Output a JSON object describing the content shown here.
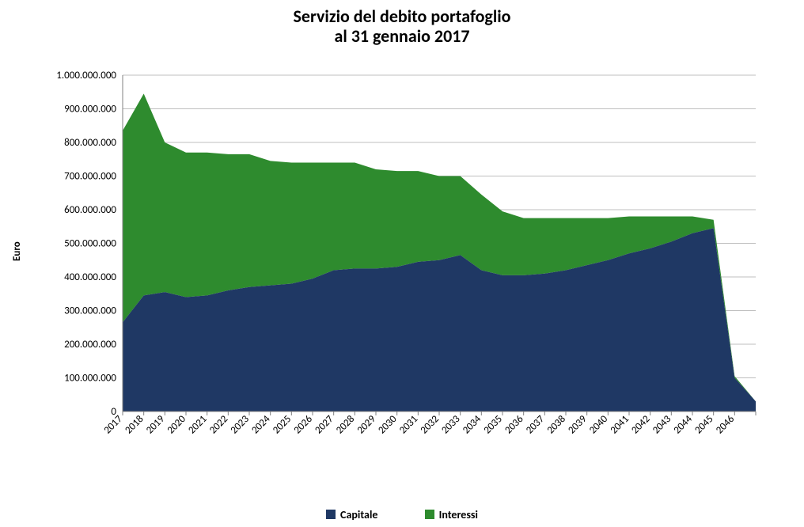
{
  "chart": {
    "type": "area",
    "title_line1": "Servizio del debito portafoglio",
    "title_line2": "al 31 gennaio 2017",
    "title_fontsize": 22,
    "y_axis_title": "Euro",
    "background_color": "#ffffff",
    "grid_color": "#bfbfbf",
    "plot_border_color": "#808080",
    "y": {
      "min": 0,
      "max": 1000000000,
      "step": 100000000,
      "labels": [
        "0",
        "100.000.000",
        "200.000.000",
        "300.000.000",
        "400.000.000",
        "500.000.000",
        "600.000.000",
        "700.000.000",
        "800.000.000",
        "900.000.000",
        "1.000.000.000"
      ]
    },
    "categories": [
      "2017",
      "2018",
      "2019",
      "2020",
      "2021",
      "2022",
      "2023",
      "2024",
      "2025",
      "2026",
      "2027",
      "2028",
      "2029",
      "2030",
      "2031",
      "2032",
      "2033",
      "2034",
      "2035",
      "2036",
      "2037",
      "2038",
      "2039",
      "2040",
      "2041",
      "2042",
      "2043",
      "2044",
      "2045",
      "2046",
      ""
    ],
    "series": [
      {
        "name": "Capitale",
        "color": "#1f3864",
        "values": [
          265000000,
          345000000,
          355000000,
          340000000,
          345000000,
          360000000,
          370000000,
          375000000,
          380000000,
          395000000,
          420000000,
          425000000,
          425000000,
          430000000,
          445000000,
          450000000,
          465000000,
          420000000,
          405000000,
          405000000,
          410000000,
          420000000,
          435000000,
          450000000,
          470000000,
          485000000,
          505000000,
          530000000,
          545000000,
          100000000,
          30000000
        ]
      },
      {
        "name": "Interessi",
        "color": "#2e8b2e",
        "values": [
          570000000,
          600000000,
          445000000,
          430000000,
          425000000,
          405000000,
          395000000,
          370000000,
          360000000,
          345000000,
          320000000,
          315000000,
          295000000,
          285000000,
          270000000,
          250000000,
          235000000,
          225000000,
          190000000,
          170000000,
          165000000,
          155000000,
          140000000,
          125000000,
          110000000,
          95000000,
          75000000,
          50000000,
          25000000,
          5000000,
          0
        ]
      }
    ],
    "legend": {
      "items": [
        {
          "label": "Capitale",
          "color": "#1f3864"
        },
        {
          "label": "Interessi",
          "color": "#2e8b2e"
        }
      ],
      "position": "bottom",
      "fontsize": 14,
      "font_weight": "700"
    }
  }
}
